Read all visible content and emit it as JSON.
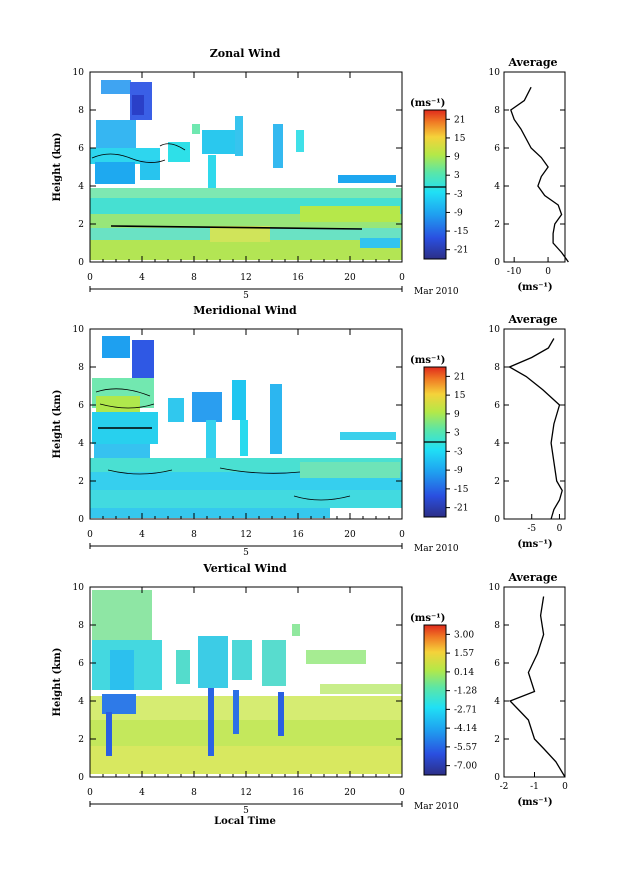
{
  "figure": {
    "bottom_xlabel": "Local Time",
    "date_label": "Mar 2010",
    "day_label": "5"
  },
  "chart_data": [
    {
      "type": "heatmap",
      "title": "Zonal Wind",
      "xlabel": "",
      "ylabel": "Height (km)",
      "xlim": [
        0,
        24
      ],
      "ylim": [
        0,
        10
      ],
      "x_ticks": [
        "0",
        "4",
        "8",
        "12",
        "16",
        "20",
        "0"
      ],
      "y_ticks": [
        "0",
        "2",
        "4",
        "6",
        "8",
        "10"
      ],
      "colorbar": {
        "unit": "(ms⁻¹)",
        "range": [
          -24,
          24
        ],
        "tick_labels": [
          "21",
          "15",
          "9",
          "3",
          "-3",
          "-9",
          "-15",
          "-21"
        ],
        "zero_line": 0
      },
      "profile": {
        "title": "Average",
        "xlabel": "(ms⁻¹)",
        "xlim": [
          -13,
          5
        ],
        "x_ticks": [
          "-10",
          "0"
        ],
        "x_tick_values": [
          -10,
          0
        ],
        "ylim": [
          0,
          10
        ],
        "y_ticks": [
          "0",
          "2",
          "4",
          "6",
          "8",
          "10"
        ],
        "points": [
          [
            6,
            0
          ],
          [
            4,
            0.5
          ],
          [
            1.5,
            1
          ],
          [
            1.5,
            1.5
          ],
          [
            2,
            2
          ],
          [
            4,
            2.5
          ],
          [
            3,
            3
          ],
          [
            -1,
            3.5
          ],
          [
            -3,
            4
          ],
          [
            -2,
            4.5
          ],
          [
            0,
            5
          ],
          [
            -2,
            5.5
          ],
          [
            -5,
            6
          ],
          [
            -8,
            7
          ],
          [
            -10,
            7.5
          ],
          [
            -11,
            8
          ],
          [
            -7,
            8.5
          ],
          [
            -5,
            9.2
          ]
        ]
      }
    },
    {
      "type": "heatmap",
      "title": "Meridional Wind",
      "xlabel": "",
      "ylabel": "Height (km)",
      "xlim": [
        0,
        24
      ],
      "ylim": [
        0,
        10
      ],
      "x_ticks": [
        "0",
        "4",
        "8",
        "12",
        "16",
        "20",
        "0"
      ],
      "y_ticks": [
        "0",
        "2",
        "4",
        "6",
        "8",
        "10"
      ],
      "colorbar": {
        "unit": "(ms⁻¹)",
        "range": [
          -24,
          24
        ],
        "tick_labels": [
          "21",
          "15",
          "9",
          "3",
          "-3",
          "-9",
          "-15",
          "-21"
        ],
        "zero_line": 0
      },
      "profile": {
        "title": "Average",
        "xlabel": "(ms⁻¹)",
        "xlim": [
          -10,
          1
        ],
        "x_ticks": [
          "-5",
          "0"
        ],
        "x_tick_values": [
          -5,
          0
        ],
        "ylim": [
          0,
          10
        ],
        "y_ticks": [
          "0",
          "2",
          "4",
          "6",
          "8",
          "10"
        ],
        "points": [
          [
            -1.5,
            0
          ],
          [
            -1,
            0.5
          ],
          [
            0,
            1
          ],
          [
            0.5,
            1.5
          ],
          [
            -0.5,
            2
          ],
          [
            -1,
            3
          ],
          [
            -1.5,
            4
          ],
          [
            -1,
            5
          ],
          [
            0,
            6
          ],
          [
            -3,
            6.8
          ],
          [
            -6,
            7.5
          ],
          [
            -9,
            8
          ],
          [
            -5,
            8.5
          ],
          [
            -2,
            9
          ],
          [
            -1,
            9.5
          ]
        ]
      }
    },
    {
      "type": "heatmap",
      "title": "Vertical Wind",
      "xlabel": "Local Time",
      "ylabel": "Height (km)",
      "xlim": [
        0,
        24
      ],
      "ylim": [
        0,
        10
      ],
      "x_ticks": [
        "0",
        "4",
        "8",
        "12",
        "16",
        "20",
        "0"
      ],
      "y_ticks": [
        "0",
        "2",
        "4",
        "6",
        "8",
        "10"
      ],
      "colorbar": {
        "unit": "(ms⁻¹)",
        "range": [
          -8,
          4.5
        ],
        "tick_labels": [
          "3.00",
          "1.57",
          "0.14",
          "-1.28",
          "-2.71",
          "-4.14",
          "-5.57",
          "-7.00"
        ]
      },
      "profile": {
        "title": "Average",
        "xlabel": "(ms⁻¹)",
        "xlim": [
          -2,
          0
        ],
        "x_ticks": [
          "-2",
          "-1",
          "0"
        ],
        "x_tick_values": [
          -2,
          -1,
          0
        ],
        "ylim": [
          0,
          10
        ],
        "y_ticks": [
          "0",
          "2",
          "4",
          "6",
          "8",
          "10"
        ],
        "points": [
          [
            0,
            0
          ],
          [
            -0.3,
            0.8
          ],
          [
            -0.7,
            1.5
          ],
          [
            -1,
            2
          ],
          [
            -1.2,
            3
          ],
          [
            -1.5,
            3.5
          ],
          [
            -1.8,
            4
          ],
          [
            -1,
            4.5
          ],
          [
            -1.2,
            5.5
          ],
          [
            -0.9,
            6.5
          ],
          [
            -0.7,
            7.5
          ],
          [
            -0.8,
            8.5
          ],
          [
            -0.7,
            9.5
          ]
        ]
      }
    }
  ]
}
